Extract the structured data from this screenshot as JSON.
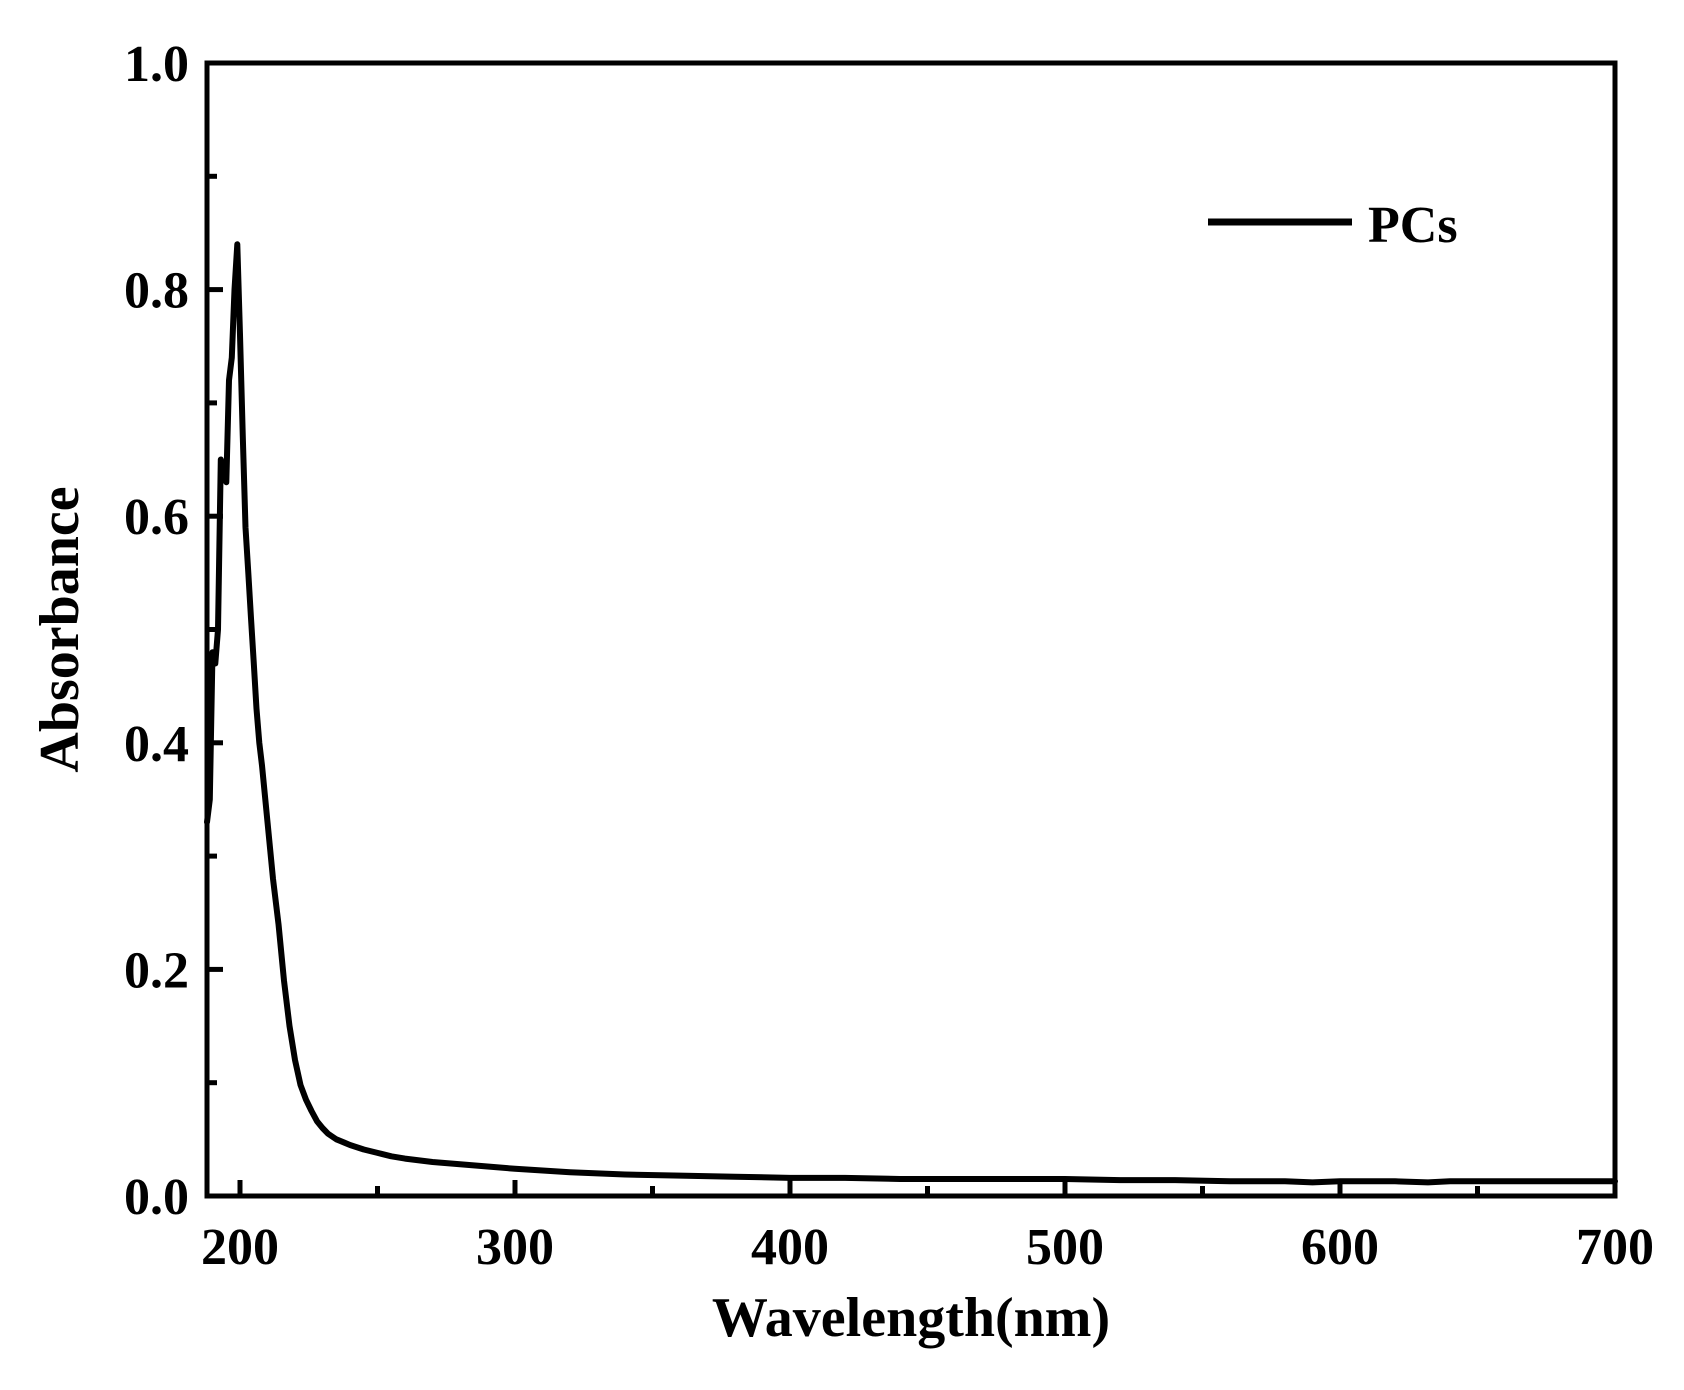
{
  "chart_data": {
    "type": "line",
    "xlabel": "Wavelength(nm)",
    "ylabel": "Absorbance",
    "xlim": [
      188,
      700
    ],
    "ylim": [
      0,
      1.0
    ],
    "x_ticks": [
      200,
      300,
      400,
      500,
      600,
      700
    ],
    "x_minor_ticks": [
      250,
      350,
      450,
      550,
      650
    ],
    "y_ticks": [
      0.0,
      0.2,
      0.4,
      0.6,
      0.8,
      1.0
    ],
    "y_tick_labels": [
      "0.0",
      "0.2",
      "0.4",
      "0.6",
      "0.8",
      "1.0"
    ],
    "y_minor_ticks": [
      0.1,
      0.3,
      0.5,
      0.7,
      0.9
    ],
    "grid": false,
    "legend_position": "top-right",
    "line_color": "#000000",
    "series": [
      {
        "name": "PCs",
        "x": [
          188,
          189,
          190,
          191,
          192,
          193,
          194,
          195,
          196,
          197,
          198,
          199,
          200,
          201,
          202,
          203,
          204,
          205,
          206,
          207,
          208,
          210,
          212,
          214,
          216,
          218,
          220,
          222,
          224,
          226,
          228,
          230,
          232,
          235,
          238,
          240,
          245,
          250,
          255,
          260,
          270,
          280,
          290,
          300,
          320,
          340,
          360,
          380,
          400,
          420,
          440,
          460,
          480,
          500,
          520,
          540,
          560,
          580,
          590,
          600,
          620,
          632,
          640,
          660,
          680,
          700
        ],
        "y": [
          0.33,
          0.35,
          0.48,
          0.47,
          0.5,
          0.65,
          0.64,
          0.63,
          0.72,
          0.74,
          0.8,
          0.84,
          0.76,
          0.67,
          0.59,
          0.55,
          0.51,
          0.47,
          0.43,
          0.4,
          0.38,
          0.33,
          0.28,
          0.24,
          0.19,
          0.15,
          0.12,
          0.098,
          0.085,
          0.075,
          0.066,
          0.06,
          0.055,
          0.05,
          0.047,
          0.045,
          0.041,
          0.038,
          0.035,
          0.033,
          0.03,
          0.028,
          0.026,
          0.024,
          0.021,
          0.019,
          0.018,
          0.017,
          0.016,
          0.016,
          0.015,
          0.015,
          0.015,
          0.015,
          0.014,
          0.014,
          0.013,
          0.013,
          0.012,
          0.013,
          0.013,
          0.012,
          0.013,
          0.013,
          0.013,
          0.013
        ]
      }
    ]
  }
}
